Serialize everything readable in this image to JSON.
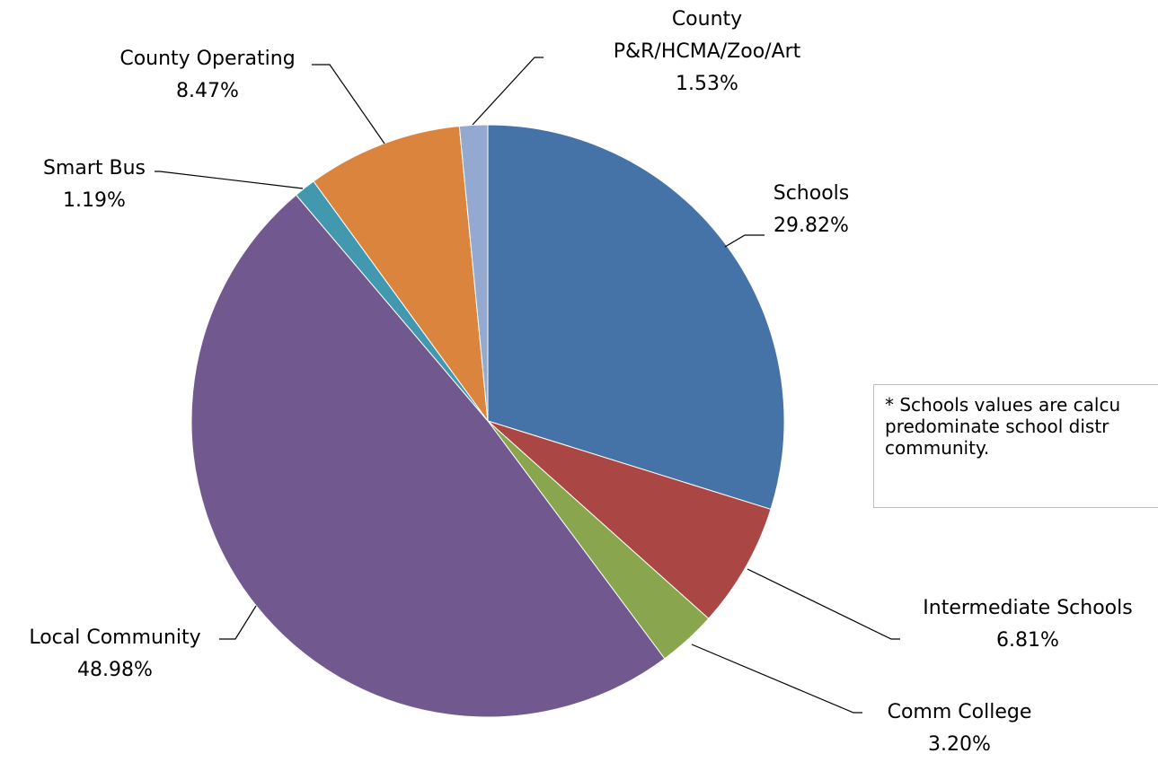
{
  "chart_data": {
    "type": "pie",
    "slices": [
      {
        "label": "Schools",
        "value": 29.82,
        "display": "29.82%",
        "color": "#4572A7"
      },
      {
        "label": "Intermediate Schools",
        "value": 6.81,
        "display": "6.81%",
        "color": "#AA4643"
      },
      {
        "label": "Comm College",
        "value": 3.2,
        "display": "3.20%",
        "color": "#89A54E"
      },
      {
        "label": "Local Community",
        "value": 48.98,
        "display": "48.98%",
        "color": "#71588F"
      },
      {
        "label": "Smart Bus",
        "value": 1.19,
        "display": "1.19%",
        "color": "#4198AF"
      },
      {
        "label": "County Operating",
        "value": 8.47,
        "display": "8.47%",
        "color": "#DB843D"
      },
      {
        "label": "County\nP&R/HCMA/Zoo/Art",
        "value": 1.53,
        "display": "1.53%",
        "color": "#93A9CF"
      }
    ],
    "start_angle": "12 o'clock",
    "direction": "clockwise",
    "legend": "none"
  },
  "note": {
    "text": "* Schools values are calcu\npredominate school distr\ncommunity."
  }
}
